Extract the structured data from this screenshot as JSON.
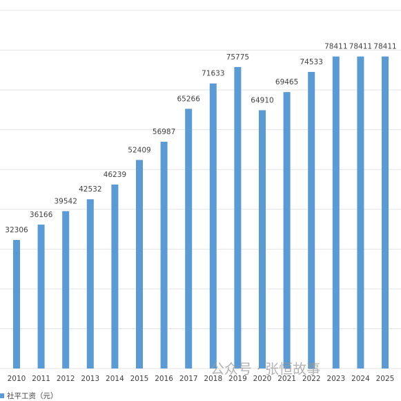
{
  "chart_data": {
    "type": "bar",
    "categories": [
      "2010",
      "2011",
      "2012",
      "2013",
      "2014",
      "2015",
      "2016",
      "2017",
      "2018",
      "2019",
      "2020",
      "2021",
      "2022",
      "2023",
      "2024",
      "2025"
    ],
    "series": [
      {
        "name": "社平工资（元）",
        "color": "#5b9bd5",
        "values": [
          32306,
          36166,
          39542,
          42532,
          46239,
          52409,
          56987,
          65266,
          71633,
          75775,
          64910,
          69465,
          74533,
          78411,
          78411,
          78411
        ]
      }
    ],
    "ylim": [
      0,
      90000
    ],
    "yticks": [
      0,
      10000,
      20000,
      30000,
      40000,
      50000,
      60000,
      70000,
      80000,
      90000
    ],
    "grid": true,
    "legend": "bottom-left",
    "annotation": "公众号 · 张恒故事"
  }
}
